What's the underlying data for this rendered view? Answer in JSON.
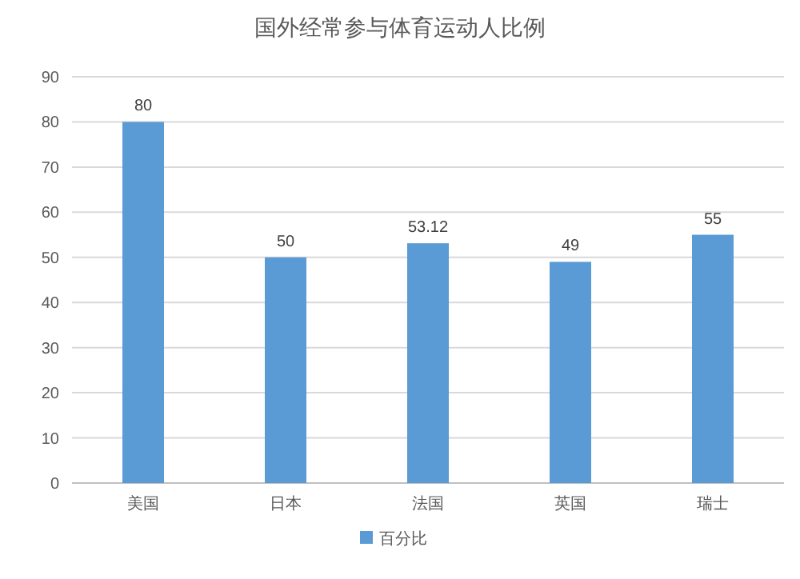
{
  "chart_data": {
    "type": "bar",
    "title": "国外经常参与体育运动人比例",
    "categories": [
      "美国",
      "日本",
      "法国",
      "英国",
      "瑞士"
    ],
    "series": [
      {
        "name": "百分比",
        "color": "#5b9bd5",
        "values": [
          80,
          50,
          53.12,
          49,
          55
        ]
      }
    ],
    "ylim": [
      0,
      90
    ],
    "yticks": [
      0,
      10,
      20,
      30,
      40,
      50,
      60,
      70,
      80,
      90
    ],
    "grid": "y",
    "legend": "bottom",
    "data_labels": true
  }
}
